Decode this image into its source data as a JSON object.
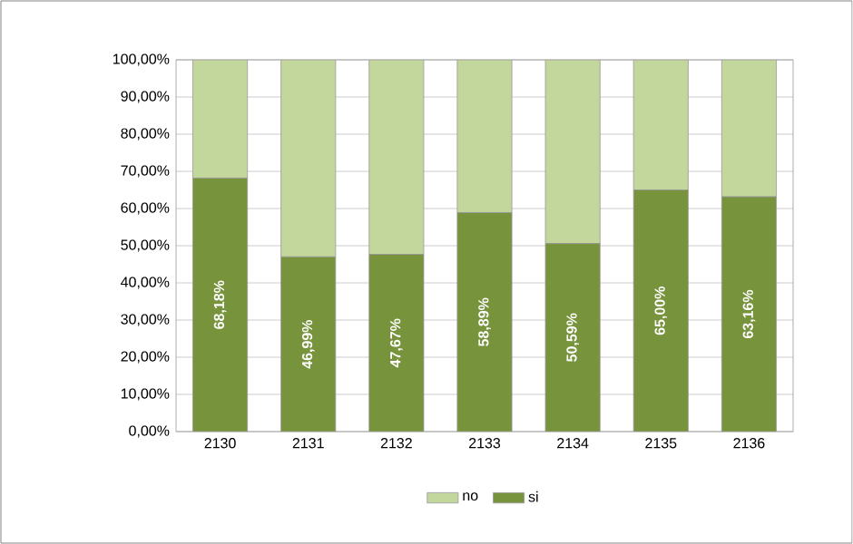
{
  "chart_data": {
    "type": "bar",
    "stacked": true,
    "categories": [
      "2130",
      "2131",
      "2132",
      "2133",
      "2134",
      "2135",
      "2136"
    ],
    "series": [
      {
        "name": "si",
        "color": "#77933c",
        "values": [
          68.18,
          46.99,
          47.67,
          58.89,
          50.59,
          65.0,
          63.16
        ],
        "value_labels": [
          "68,18%",
          "46,99%",
          "47,67%",
          "58,89%",
          "50,59%",
          "65,00%",
          "63,16%"
        ]
      },
      {
        "name": "no",
        "color": "#c3d69b",
        "values": [
          31.82,
          53.01,
          52.33,
          41.11,
          49.41,
          35.0,
          36.84
        ]
      }
    ],
    "ylim": [
      0,
      100
    ],
    "yticks": [
      {
        "value": 0,
        "label": "0,00%"
      },
      {
        "value": 10,
        "label": "10,00%"
      },
      {
        "value": 20,
        "label": "20,00%"
      },
      {
        "value": 30,
        "label": "30,00%"
      },
      {
        "value": 40,
        "label": "40,00%"
      },
      {
        "value": 50,
        "label": "50,00%"
      },
      {
        "value": 60,
        "label": "60,00%"
      },
      {
        "value": 70,
        "label": "70,00%"
      },
      {
        "value": 80,
        "label": "80,00%"
      },
      {
        "value": 90,
        "label": "90,00%"
      },
      {
        "value": 100,
        "label": "100,00%"
      }
    ],
    "grid": "y",
    "legend": "bottom"
  }
}
